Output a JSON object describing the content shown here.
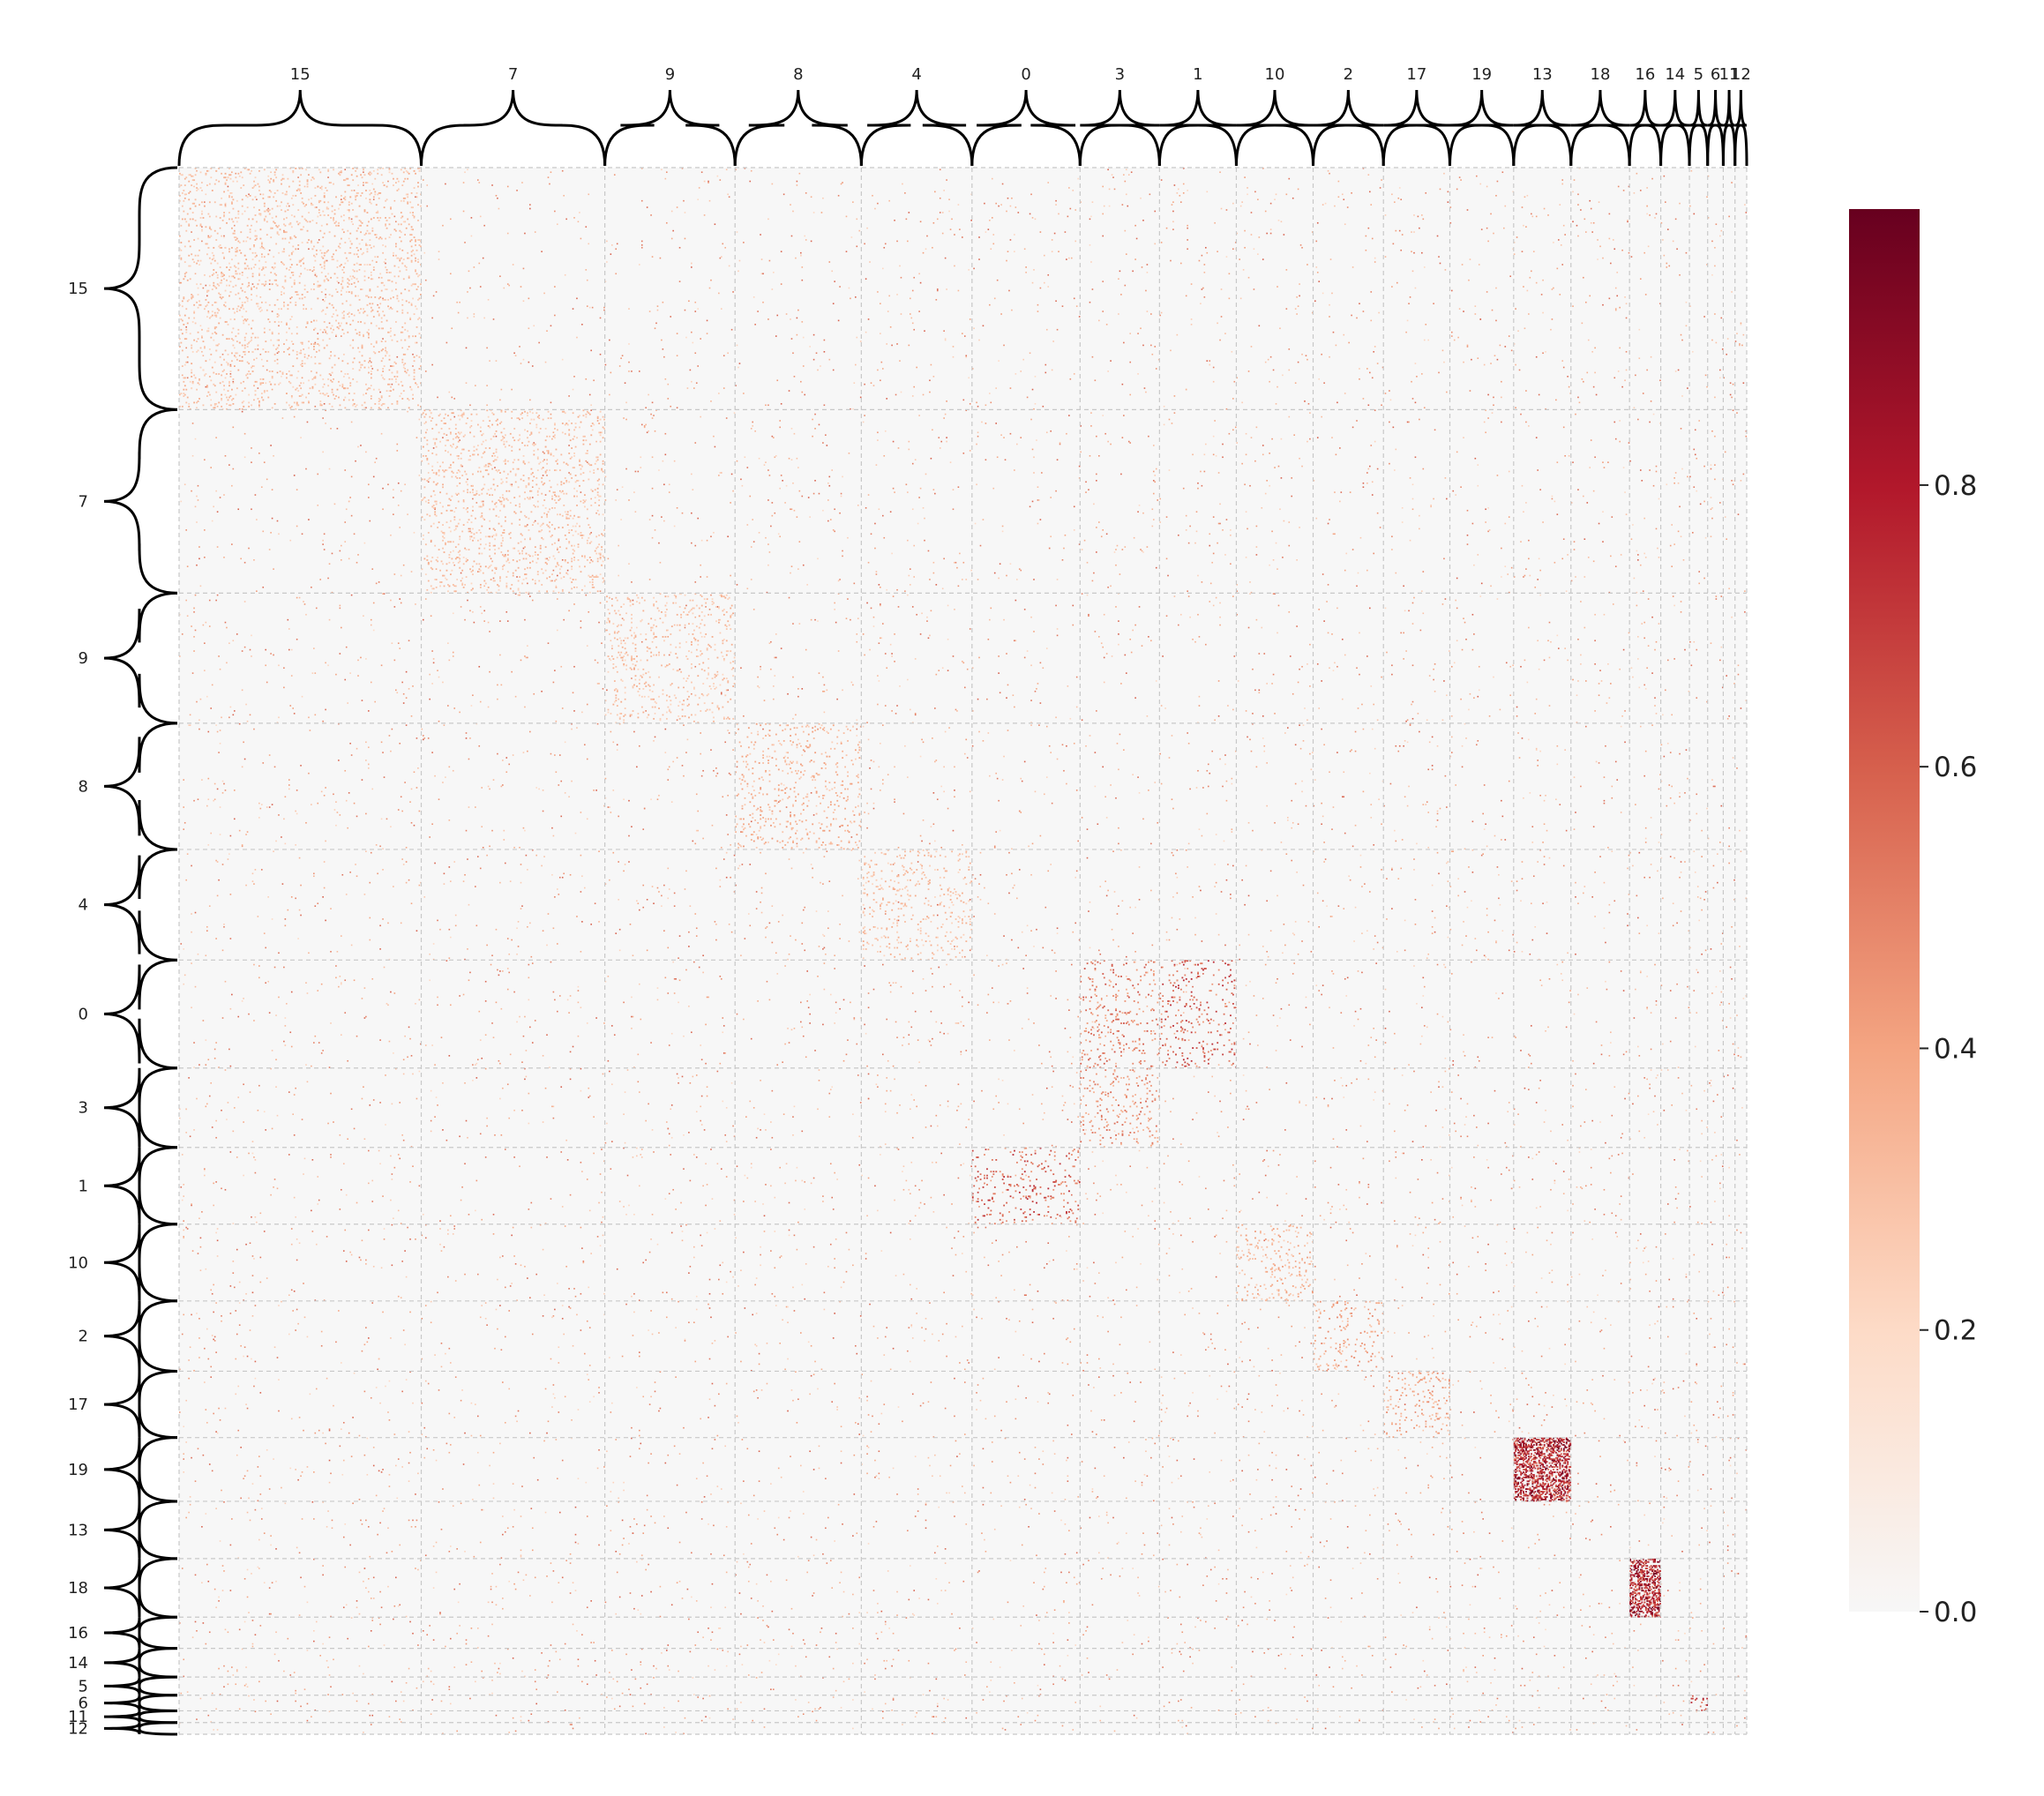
{
  "chart_data": {
    "type": "heatmap",
    "title": "",
    "xlabel": "",
    "ylabel": "",
    "cluster_order": [
      "15",
      "7",
      "9",
      "8",
      "4",
      "0",
      "3",
      "1",
      "10",
      "2",
      "17",
      "19",
      "13",
      "18",
      "16",
      "14",
      "5",
      "6",
      "11",
      "12"
    ],
    "cluster_sizes": [
      186,
      141,
      100,
      97,
      85,
      83,
      61,
      59,
      59,
      54,
      51,
      49,
      44,
      45,
      24,
      22,
      14,
      12,
      9,
      9
    ],
    "total_items": 1204,
    "value_range": [
      0,
      1
    ],
    "colormap": "RdBu_r (upper half, white to dark red)",
    "colorbar": {
      "ticks": [
        0.0,
        0.2,
        0.4,
        0.6,
        0.8
      ],
      "tick_labels": [
        "0.0",
        "0.2",
        "0.4",
        "0.6",
        "0.8"
      ]
    },
    "grid": true,
    "background_value": 0.0,
    "blocks": [
      {
        "row": "15",
        "col": "15",
        "density": 0.06,
        "strength": 0.35
      },
      {
        "row": "7",
        "col": "7",
        "density": 0.06,
        "strength": 0.35
      },
      {
        "row": "9",
        "col": "9",
        "density": 0.05,
        "strength": 0.35
      },
      {
        "row": "8",
        "col": "8",
        "density": 0.05,
        "strength": 0.4
      },
      {
        "row": "4",
        "col": "4",
        "density": 0.05,
        "strength": 0.35
      },
      {
        "row": "0",
        "col": "3",
        "density": 0.05,
        "strength": 0.6
      },
      {
        "row": "0",
        "col": "1",
        "density": 0.05,
        "strength": 0.7
      },
      {
        "row": "3",
        "col": "3",
        "density": 0.05,
        "strength": 0.55
      },
      {
        "row": "1",
        "col": "0",
        "density": 0.05,
        "strength": 0.7
      },
      {
        "row": "10",
        "col": "10",
        "density": 0.06,
        "strength": 0.4
      },
      {
        "row": "2",
        "col": "2",
        "density": 0.05,
        "strength": 0.45
      },
      {
        "row": "17",
        "col": "17",
        "density": 0.06,
        "strength": 0.45
      },
      {
        "row": "19",
        "col": "13",
        "density": 0.55,
        "strength": 0.9
      },
      {
        "row": "18",
        "col": "16",
        "density": 0.55,
        "strength": 0.9
      },
      {
        "row": "6",
        "col": "5",
        "density": 0.1,
        "strength": 0.8
      }
    ]
  },
  "colors": {
    "colormap_stops": [
      "#f7f7f7",
      "#fddbc7",
      "#f4a582",
      "#d6604d",
      "#b2182b",
      "#67001f"
    ],
    "grid": "#c8c8c8",
    "brace": "#000000",
    "background": "#ffffff"
  }
}
